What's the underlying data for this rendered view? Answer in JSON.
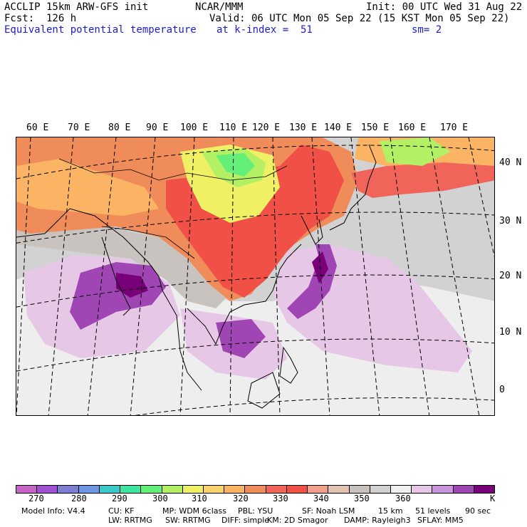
{
  "header": {
    "line1_left": "ACCLIP 15km ARW-GFS init",
    "line1_center": "NCAR/MMM",
    "line1_right": "Init: 00 UTC Wed 31 Aug 22",
    "line2_left": "Fcst:  126 h",
    "line2_right": "Valid: 06 UTC Mon 05 Sep 22 (15 KST Mon 05 Sep 22)",
    "line3_left": "Equivalent potential temperature",
    "line3_center": "at k-index =  51",
    "line3_right": "sm= 2"
  },
  "longitude_labels": [
    "60 E",
    "70 E",
    "80 E",
    "90 E",
    "100 E",
    "110 E",
    "120 E",
    "130 E",
    "140 E",
    "150 E",
    "160 E",
    "170 E"
  ],
  "latitude_labels": [
    "40 N",
    "30 N",
    "20 N",
    "10 N",
    "0"
  ],
  "colorbar": {
    "colors": [
      "#c864c8",
      "#a050d2",
      "#7d7dd2",
      "#6e96e6",
      "#3cc8c8",
      "#3ce6a0",
      "#64f078",
      "#b4f064",
      "#f0f064",
      "#fad26e",
      "#fab464",
      "#f08c5a",
      "#f0645a",
      "#f05046",
      "#f0a08c",
      "#e1c3af",
      "#c8c3be",
      "#d2d2d2",
      "#f0f0f0",
      "#e6c8e6",
      "#c896dc",
      "#a046b4",
      "#780078"
    ],
    "tick_labels": [
      "270",
      "280",
      "290",
      "300",
      "310",
      "320",
      "330",
      "340",
      "350",
      "360",
      "K"
    ]
  },
  "model_info": {
    "line1": [
      "Model Info: V4.4",
      "CU: KF",
      "MP: WDM 6class",
      "PBL: YSU",
      "SF: Noah LSM",
      "15 km",
      "51 levels",
      "90 sec"
    ],
    "line2": [
      "LW: RRTMG",
      "SW: RRTMG",
      "DIFF: simple",
      "KM: 2D Smagor",
      "DAMP: Rayleigh3",
      "SFLAY: MM5"
    ]
  }
}
